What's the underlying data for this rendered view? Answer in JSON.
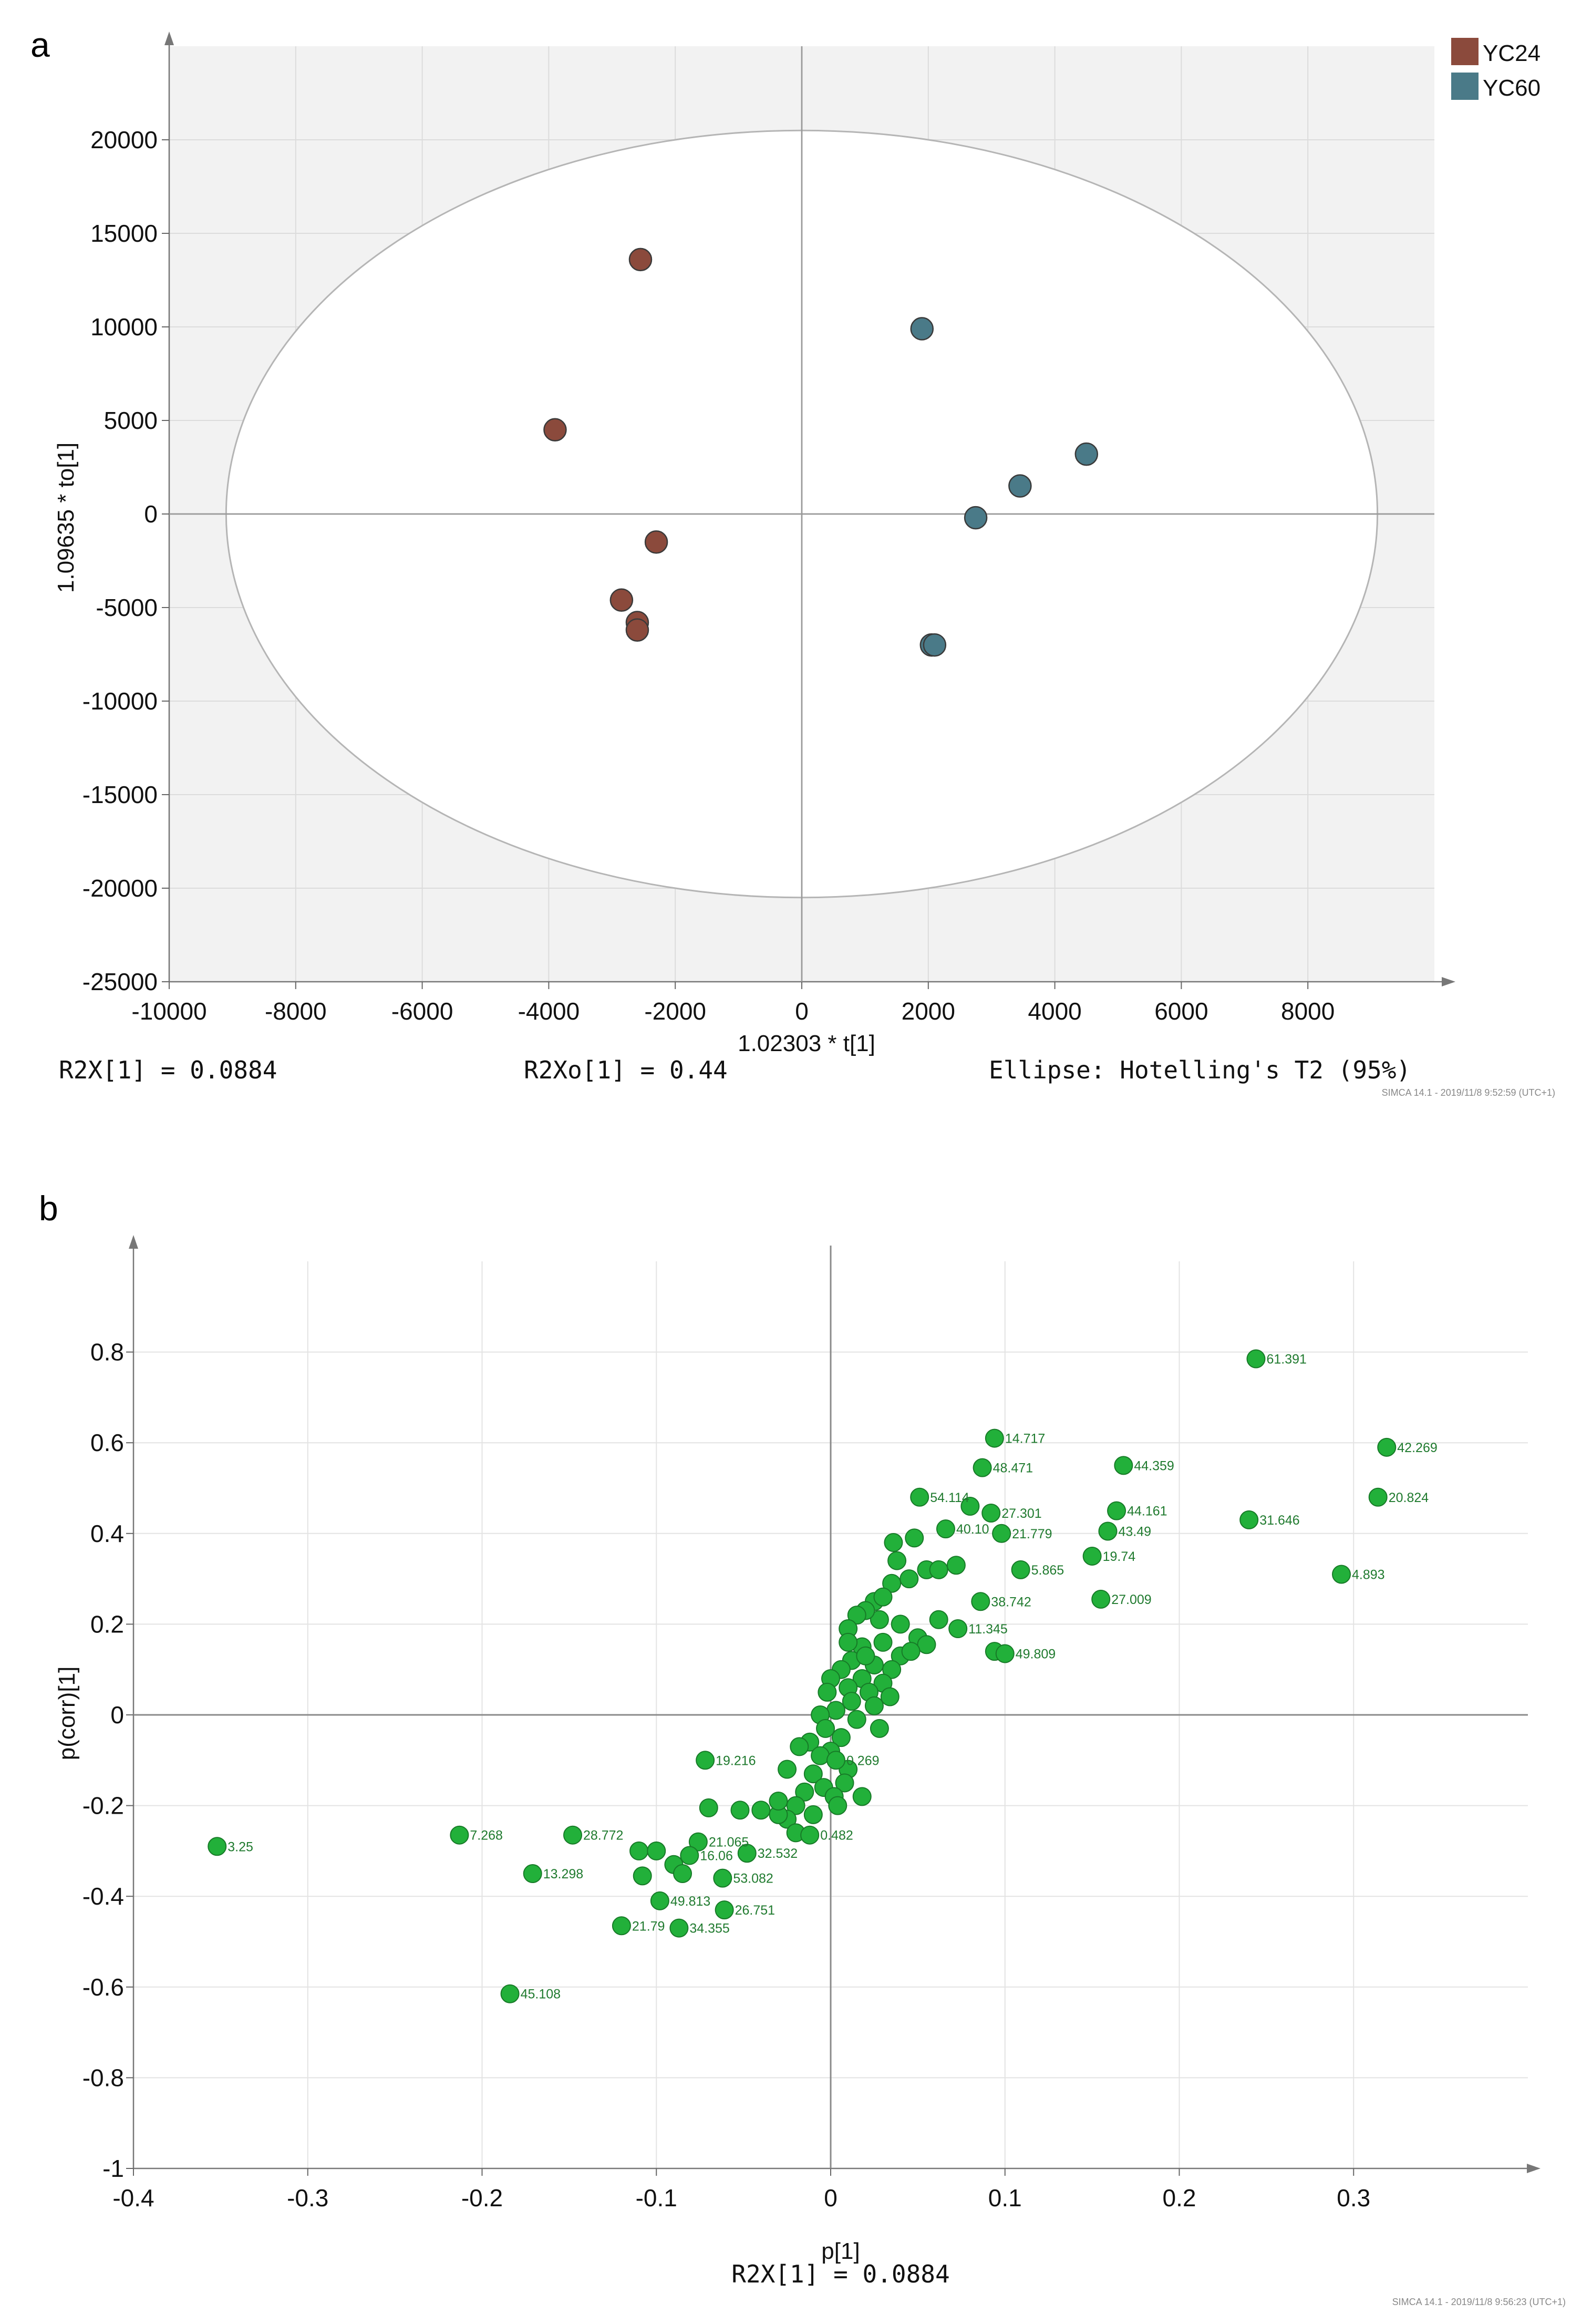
{
  "panel_a": {
    "label": "a",
    "x_axis_label": "1.02303 * t[1]",
    "y_axis_label": "1.09635 * to[1]",
    "stat_left": "R2X[1] = 0.0884",
    "stat_mid": "R2Xo[1] = 0.44",
    "stat_right": "Ellipse: Hotelling's T2 (95%)",
    "footer": "SIMCA 14.1 - 2019/11/8 9:52:59 (UTC+1)",
    "legend": [
      {
        "name": "YC24",
        "color": "#8b4a3c"
      },
      {
        "name": "YC60",
        "color": "#4a7a88"
      }
    ]
  },
  "panel_b": {
    "label": "b",
    "x_axis_label": "p[1]",
    "y_axis_label": "p(corr)[1]",
    "stat_bottom": "R2X[1] = 0.0884",
    "footer": "SIMCA 14.1 - 2019/11/8 9:56:23 (UTC+1)",
    "point_color": "#22b03a"
  },
  "chart_data": [
    {
      "type": "scatter",
      "title": "",
      "xlabel": "1.02303 * t[1]",
      "ylabel": "1.09635 * to[1]",
      "xlim": [
        -10000,
        10000
      ],
      "ylim": [
        -25000,
        25000
      ],
      "x_ticks": [
        -10000,
        -8000,
        -6000,
        -4000,
        -2000,
        0,
        2000,
        4000,
        6000,
        8000
      ],
      "y_ticks": [
        -25000,
        -20000,
        -15000,
        -10000,
        -5000,
        0,
        5000,
        10000,
        15000,
        20000
      ],
      "ellipse": {
        "label": "Hotelling's T2 (95%)",
        "rx": 9100,
        "ry": 20500
      },
      "series": [
        {
          "name": "YC24",
          "color": "#8b4a3c",
          "x": [
            -2550,
            -3900,
            -2300,
            -2850,
            -2600,
            -2600
          ],
          "y": [
            13600,
            4500,
            -1500,
            -4600,
            -5800,
            -6200
          ]
        },
        {
          "name": "YC60",
          "color": "#4a7a88",
          "x": [
            1900,
            4500,
            3450,
            2750,
            2050,
            2100
          ],
          "y": [
            9900,
            3200,
            1500,
            -200,
            -7000,
            -7000
          ]
        }
      ]
    },
    {
      "type": "scatter",
      "title": "",
      "xlabel": "p[1]",
      "ylabel": "p(corr)[1]",
      "xlim": [
        -0.4,
        0.4
      ],
      "ylim": [
        -1,
        1
      ],
      "x_ticks": [
        -0.4,
        -0.3,
        -0.2,
        -0.1,
        0,
        0.1,
        0.2,
        0.3
      ],
      "y_ticks": [
        -1,
        -0.8,
        -0.6,
        -0.4,
        -0.2,
        0,
        0.2,
        0.4,
        0.6,
        0.8
      ],
      "labeled_points": [
        {
          "label": "61.391",
          "x": 0.244,
          "y": 0.785
        },
        {
          "label": "42.269",
          "x": 0.319,
          "y": 0.59
        },
        {
          "label": "20.824",
          "x": 0.314,
          "y": 0.48
        },
        {
          "label": "4.893",
          "x": 0.293,
          "y": 0.31
        },
        {
          "label": "31.646",
          "x": 0.24,
          "y": 0.43
        },
        {
          "label": "14.717",
          "x": 0.094,
          "y": 0.61
        },
        {
          "label": "48.471",
          "x": 0.087,
          "y": 0.545
        },
        {
          "label": "44.359",
          "x": 0.168,
          "y": 0.55
        },
        {
          "label": "44.161",
          "x": 0.164,
          "y": 0.45
        },
        {
          "label": "43.49",
          "x": 0.159,
          "y": 0.405
        },
        {
          "label": "19.74",
          "x": 0.15,
          "y": 0.35
        },
        {
          "label": "27.009",
          "x": 0.155,
          "y": 0.255
        },
        {
          "label": "54.114",
          "x": 0.051,
          "y": 0.48
        },
        {
          "label": "27.301",
          "x": 0.092,
          "y": 0.445
        },
        {
          "label": "40.10",
          "x": 0.066,
          "y": 0.41
        },
        {
          "label": "21.779",
          "x": 0.098,
          "y": 0.4
        },
        {
          "label": "5.865",
          "x": 0.109,
          "y": 0.32
        },
        {
          "label": "38.742",
          "x": 0.086,
          "y": 0.25
        },
        {
          "label": "11.345",
          "x": 0.073,
          "y": 0.19
        },
        {
          "label": "49.809",
          "x": 0.1,
          "y": 0.135
        },
        {
          "label": "19.216",
          "x": -0.072,
          "y": -0.1
        },
        {
          "label": "3.25",
          "x": -0.352,
          "y": -0.29
        },
        {
          "label": "7.268",
          "x": -0.213,
          "y": -0.265
        },
        {
          "label": "28.772",
          "x": -0.148,
          "y": -0.265
        },
        {
          "label": "13.298",
          "x": -0.171,
          "y": -0.35
        },
        {
          "label": "21.065",
          "x": -0.076,
          "y": -0.28
        },
        {
          "label": "16.06",
          "x": -0.081,
          "y": -0.31
        },
        {
          "label": "32.532",
          "x": -0.048,
          "y": -0.305
        },
        {
          "label": "53.082",
          "x": -0.062,
          "y": -0.36
        },
        {
          "label": "49.813",
          "x": -0.098,
          "y": -0.41
        },
        {
          "label": "26.751",
          "x": -0.061,
          "y": -0.43
        },
        {
          "label": "21.79",
          "x": -0.12,
          "y": -0.465
        },
        {
          "label": "34.355",
          "x": -0.087,
          "y": -0.47
        },
        {
          "label": "45.108",
          "x": -0.184,
          "y": -0.615
        },
        {
          "label": "0.482",
          "x": -0.012,
          "y": -0.265
        },
        {
          "label": "0.269",
          "x": 0.003,
          "y": -0.1
        }
      ],
      "unlabeled_points": [
        {
          "x": 0.036,
          "y": 0.38
        },
        {
          "x": 0.048,
          "y": 0.39
        },
        {
          "x": 0.072,
          "y": 0.33
        },
        {
          "x": 0.08,
          "y": 0.46
        },
        {
          "x": 0.038,
          "y": 0.34
        },
        {
          "x": 0.055,
          "y": 0.32
        },
        {
          "x": 0.045,
          "y": 0.3
        },
        {
          "x": 0.035,
          "y": 0.29
        },
        {
          "x": 0.062,
          "y": 0.21
        },
        {
          "x": 0.05,
          "y": 0.17
        },
        {
          "x": 0.055,
          "y": 0.155
        },
        {
          "x": 0.094,
          "y": 0.14
        },
        {
          "x": 0.025,
          "y": 0.25
        },
        {
          "x": 0.028,
          "y": 0.21
        },
        {
          "x": 0.02,
          "y": 0.23
        },
        {
          "x": 0.015,
          "y": 0.22
        },
        {
          "x": 0.01,
          "y": 0.19
        },
        {
          "x": 0.03,
          "y": 0.16
        },
        {
          "x": 0.018,
          "y": 0.15
        },
        {
          "x": 0.04,
          "y": 0.13
        },
        {
          "x": 0.012,
          "y": 0.12
        },
        {
          "x": 0.025,
          "y": 0.11
        },
        {
          "x": 0.035,
          "y": 0.1
        },
        {
          "x": 0.006,
          "y": 0.1
        },
        {
          "x": 0.018,
          "y": 0.08
        },
        {
          "x": 0.03,
          "y": 0.07
        },
        {
          "x": 0.0,
          "y": 0.08
        },
        {
          "x": 0.01,
          "y": 0.06
        },
        {
          "x": 0.022,
          "y": 0.05
        },
        {
          "x": -0.002,
          "y": 0.05
        },
        {
          "x": 0.012,
          "y": 0.03
        },
        {
          "x": 0.025,
          "y": 0.02
        },
        {
          "x": 0.003,
          "y": 0.01
        },
        {
          "x": -0.006,
          "y": 0.0
        },
        {
          "x": 0.015,
          "y": -0.01
        },
        {
          "x": 0.028,
          "y": -0.03
        },
        {
          "x": -0.003,
          "y": -0.03
        },
        {
          "x": 0.006,
          "y": -0.05
        },
        {
          "x": -0.012,
          "y": -0.06
        },
        {
          "x": -0.018,
          "y": -0.07
        },
        {
          "x": 0.0,
          "y": -0.08
        },
        {
          "x": -0.006,
          "y": -0.09
        },
        {
          "x": 0.01,
          "y": -0.12
        },
        {
          "x": -0.01,
          "y": -0.13
        },
        {
          "x": -0.025,
          "y": -0.12
        },
        {
          "x": 0.008,
          "y": -0.15
        },
        {
          "x": -0.004,
          "y": -0.16
        },
        {
          "x": -0.015,
          "y": -0.17
        },
        {
          "x": 0.002,
          "y": -0.18
        },
        {
          "x": -0.02,
          "y": -0.2
        },
        {
          "x": -0.01,
          "y": -0.22
        },
        {
          "x": 0.004,
          "y": -0.2
        },
        {
          "x": -0.025,
          "y": -0.23
        },
        {
          "x": -0.03,
          "y": -0.22
        },
        {
          "x": -0.04,
          "y": -0.21
        },
        {
          "x": -0.02,
          "y": -0.26
        },
        {
          "x": -0.07,
          "y": -0.205
        },
        {
          "x": -0.052,
          "y": -0.21
        },
        {
          "x": -0.03,
          "y": -0.19
        },
        {
          "x": 0.018,
          "y": -0.18
        },
        {
          "x": -0.11,
          "y": -0.3
        },
        {
          "x": -0.1,
          "y": -0.3
        },
        {
          "x": -0.09,
          "y": -0.33
        },
        {
          "x": -0.108,
          "y": -0.355
        },
        {
          "x": -0.085,
          "y": -0.35
        },
        {
          "x": 0.04,
          "y": 0.2
        },
        {
          "x": 0.046,
          "y": 0.14
        },
        {
          "x": 0.062,
          "y": 0.32
        },
        {
          "x": 0.03,
          "y": 0.26
        },
        {
          "x": 0.01,
          "y": 0.16
        },
        {
          "x": 0.02,
          "y": 0.13
        },
        {
          "x": 0.034,
          "y": 0.04
        }
      ]
    }
  ]
}
